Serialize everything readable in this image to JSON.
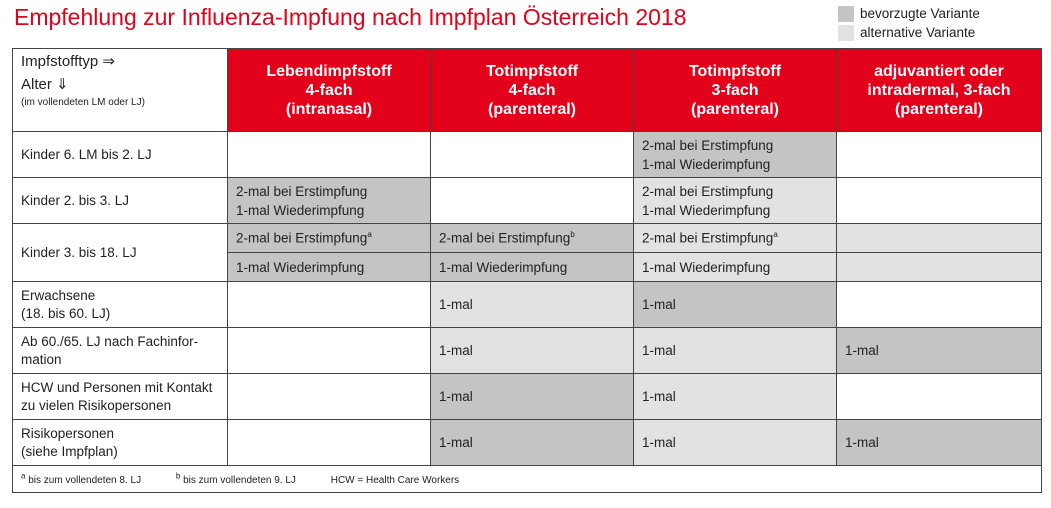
{
  "title": "Empfehlung zur Influenza-Impfung nach Impfplan Österreich 2018",
  "legend": {
    "preferred": "bevorzugte Variante",
    "alternative": "alternative Variante",
    "preferred_color": "#c4c4c4",
    "alternative_color": "#e2e2e2"
  },
  "corner": {
    "line1": "Impfstofftyp ⇒",
    "line2": "Alter ⇓",
    "line3": "(im vollendeten LM oder LJ)"
  },
  "columns": [
    {
      "l1": "Lebendimpfstoff",
      "l2": "4-fach",
      "l3": "(intranasal)"
    },
    {
      "l1": "Totimpfstoff",
      "l2": "4-fach",
      "l3": "(parenteral)"
    },
    {
      "l1": "Totimpfstoff",
      "l2": "3-fach",
      "l3": "(parenteral)"
    },
    {
      "l1": "adjuvantiert oder",
      "l2": "intradermal, 3-fach",
      "l3": "(parenteral)"
    }
  ],
  "rows": {
    "r1": {
      "label": "Kinder 6. LM bis 2. LJ",
      "c3a": "2-mal bei Erstimpfung",
      "c3b": "1-mal Wiederimpfung"
    },
    "r2": {
      "label": "Kinder 2. bis 3. LJ",
      "c1a": "2-mal bei Erstimpfung",
      "c1b": "1-mal Wiederimpfung",
      "c3a": "2-mal bei Erstimpfung",
      "c3b": "1-mal Wiederimpfung"
    },
    "r3": {
      "label": "Kinder 3. bis 18. LJ",
      "c1a": "2-mal bei Erstimpfung",
      "c1a_sup": "a",
      "c2a": "2-mal bei Erstimpfung",
      "c2a_sup": "b",
      "c3a": "2-mal bei Erstimpfung",
      "c3a_sup": "a",
      "c1b": "1-mal Wiederimpfung",
      "c2b": "1-mal Wiederimpfung",
      "c3b": "1-mal Wiederimpfung"
    },
    "r4": {
      "label1": "Erwachsene",
      "label2": "(18. bis 60. LJ)",
      "c2": "1-mal",
      "c3": "1-mal"
    },
    "r5": {
      "label1": "Ab 60./65. LJ nach Fachinfor-",
      "label2": "mation",
      "c2": "1-mal",
      "c3": "1-mal",
      "c4": "1-mal"
    },
    "r6": {
      "label1": "HCW und Personen mit Kontakt",
      "label2": "zu vielen Risikopersonen",
      "c2": "1-mal",
      "c3": "1-mal"
    },
    "r7": {
      "label1": "Risikopersonen",
      "label2": "(siehe Impfplan)",
      "c2": "1-mal",
      "c3": "1-mal",
      "c4": "1-mal"
    }
  },
  "footnotes": {
    "a_mark": "a",
    "a": " bis zum vollendeten 8. LJ",
    "b_mark": "b",
    "b": " bis zum vollendeten 9. LJ",
    "hcw": "HCW = Health Care Workers"
  }
}
